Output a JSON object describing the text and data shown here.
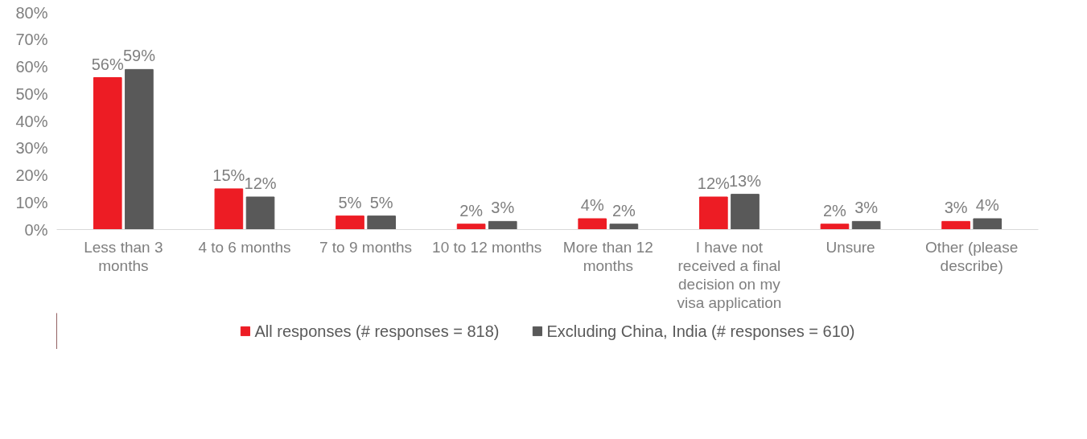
{
  "chart_data": {
    "type": "bar",
    "categories": [
      "Less than 3 months",
      "4 to 6 months",
      "7 to 9 months",
      "10 to 12 months",
      "More than 12 months",
      "I have not received a final decision on my visa application",
      "Unsure",
      "Other (please describe)"
    ],
    "series": [
      {
        "name": "All responses (# responses = 818)",
        "color": "#ed1c24",
        "values": [
          56,
          15,
          5,
          2,
          4,
          12,
          2,
          3
        ],
        "value_labels": [
          "56%",
          "15%",
          "5%",
          "2%",
          "4%",
          "12%",
          "2%",
          "3%"
        ]
      },
      {
        "name": "Excluding China, India (# responses = 610)",
        "color": "#595959",
        "values": [
          59,
          12,
          5,
          3,
          2,
          13,
          3,
          4
        ],
        "value_labels": [
          "59%",
          "12%",
          "5%",
          "3%",
          "2%",
          "13%",
          "3%",
          "4%"
        ]
      }
    ],
    "ylim": [
      0,
      80
    ],
    "yticks": [
      {
        "value": 0,
        "label": "0%"
      },
      {
        "value": 10,
        "label": "10%"
      },
      {
        "value": 20,
        "label": "20%"
      },
      {
        "value": 30,
        "label": "30%"
      },
      {
        "value": 40,
        "label": "40%"
      },
      {
        "value": 50,
        "label": "50%"
      },
      {
        "value": 60,
        "label": "60%"
      },
      {
        "value": 70,
        "label": "70%"
      },
      {
        "value": 80,
        "label": "80%"
      }
    ],
    "grid": false,
    "legend": "bottom"
  }
}
